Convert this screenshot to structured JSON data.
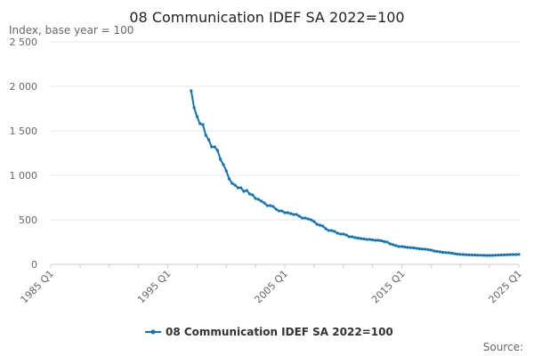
{
  "chart_data": {
    "type": "line",
    "title": "08 Communication IDEF SA 2022=100",
    "ylabel": "Index, base year = 100",
    "xlabel": "",
    "source_label": "Source:",
    "ylim": [
      0,
      2500
    ],
    "yticks": [
      0,
      500,
      1000,
      1500,
      2000,
      2500
    ],
    "ytick_labels": [
      "0",
      "500",
      "1 000",
      "1 500",
      "2 000",
      "2 500"
    ],
    "xlim": [
      1985.0,
      2025.0
    ],
    "xticks": [
      1985.0,
      1995.0,
      2005.0,
      2015.0,
      2025.0
    ],
    "xtick_labels": [
      "1985 Q1",
      "1995 Q1",
      "2005 Q1",
      "2015 Q1",
      "2025 Q1"
    ],
    "grid": true,
    "legend_position": "bottom-center",
    "colors": {
      "series": "#0f75b6"
    },
    "series": [
      {
        "name": "08 Communication IDEF SA 2022=100",
        "x": [
          1997.0,
          1997.25,
          1997.5,
          1997.75,
          1998.0,
          1998.25,
          1998.5,
          1998.75,
          1999.0,
          1999.25,
          1999.5,
          1999.75,
          2000.0,
          2000.25,
          2000.5,
          2000.75,
          2001.0,
          2001.25,
          2001.5,
          2001.75,
          2002.0,
          2002.25,
          2002.5,
          2002.75,
          2003.0,
          2003.25,
          2003.5,
          2003.75,
          2004.0,
          2004.25,
          2004.5,
          2004.75,
          2005.0,
          2005.25,
          2005.5,
          2005.75,
          2006.0,
          2006.25,
          2006.5,
          2006.75,
          2007.0,
          2007.25,
          2007.5,
          2007.75,
          2008.0,
          2008.25,
          2008.5,
          2008.75,
          2009.0,
          2009.25,
          2009.5,
          2009.75,
          2010.0,
          2010.25,
          2010.5,
          2010.75,
          2011.0,
          2011.25,
          2011.5,
          2011.75,
          2012.0,
          2012.25,
          2012.5,
          2012.75,
          2013.0,
          2013.25,
          2013.5,
          2013.75,
          2014.0,
          2014.25,
          2014.5,
          2014.75,
          2015.0,
          2015.25,
          2015.5,
          2015.75,
          2016.0,
          2016.25,
          2016.5,
          2016.75,
          2017.0,
          2017.25,
          2017.5,
          2017.75,
          2018.0,
          2018.25,
          2018.5,
          2018.75,
          2019.0,
          2019.25,
          2019.5,
          2019.75,
          2020.0,
          2020.25,
          2020.5,
          2020.75,
          2021.0,
          2021.25,
          2021.5,
          2021.75,
          2022.0,
          2022.25,
          2022.5,
          2022.75,
          2023.0,
          2023.25,
          2023.5,
          2023.75,
          2024.0,
          2024.25,
          2024.5,
          2024.75,
          2025.0
        ],
        "values": [
          1950,
          1760,
          1660,
          1580,
          1570,
          1450,
          1400,
          1320,
          1320,
          1280,
          1180,
          1120,
          1050,
          960,
          910,
          890,
          860,
          860,
          820,
          830,
          790,
          780,
          740,
          730,
          710,
          690,
          660,
          660,
          650,
          620,
          600,
          600,
          580,
          580,
          570,
          560,
          560,
          540,
          520,
          520,
          510,
          500,
          480,
          450,
          440,
          430,
          400,
          380,
          380,
          370,
          350,
          340,
          340,
          330,
          310,
          310,
          300,
          295,
          290,
          285,
          280,
          280,
          275,
          270,
          270,
          265,
          255,
          250,
          230,
          220,
          210,
          200,
          200,
          195,
          190,
          188,
          185,
          180,
          175,
          172,
          170,
          165,
          160,
          150,
          145,
          140,
          135,
          132,
          130,
          125,
          120,
          115,
          112,
          110,
          108,
          106,
          105,
          104,
          103,
          102,
          101,
          100,
          100,
          100,
          102,
          104,
          105,
          106,
          108,
          109,
          110,
          110,
          112
        ]
      }
    ]
  }
}
